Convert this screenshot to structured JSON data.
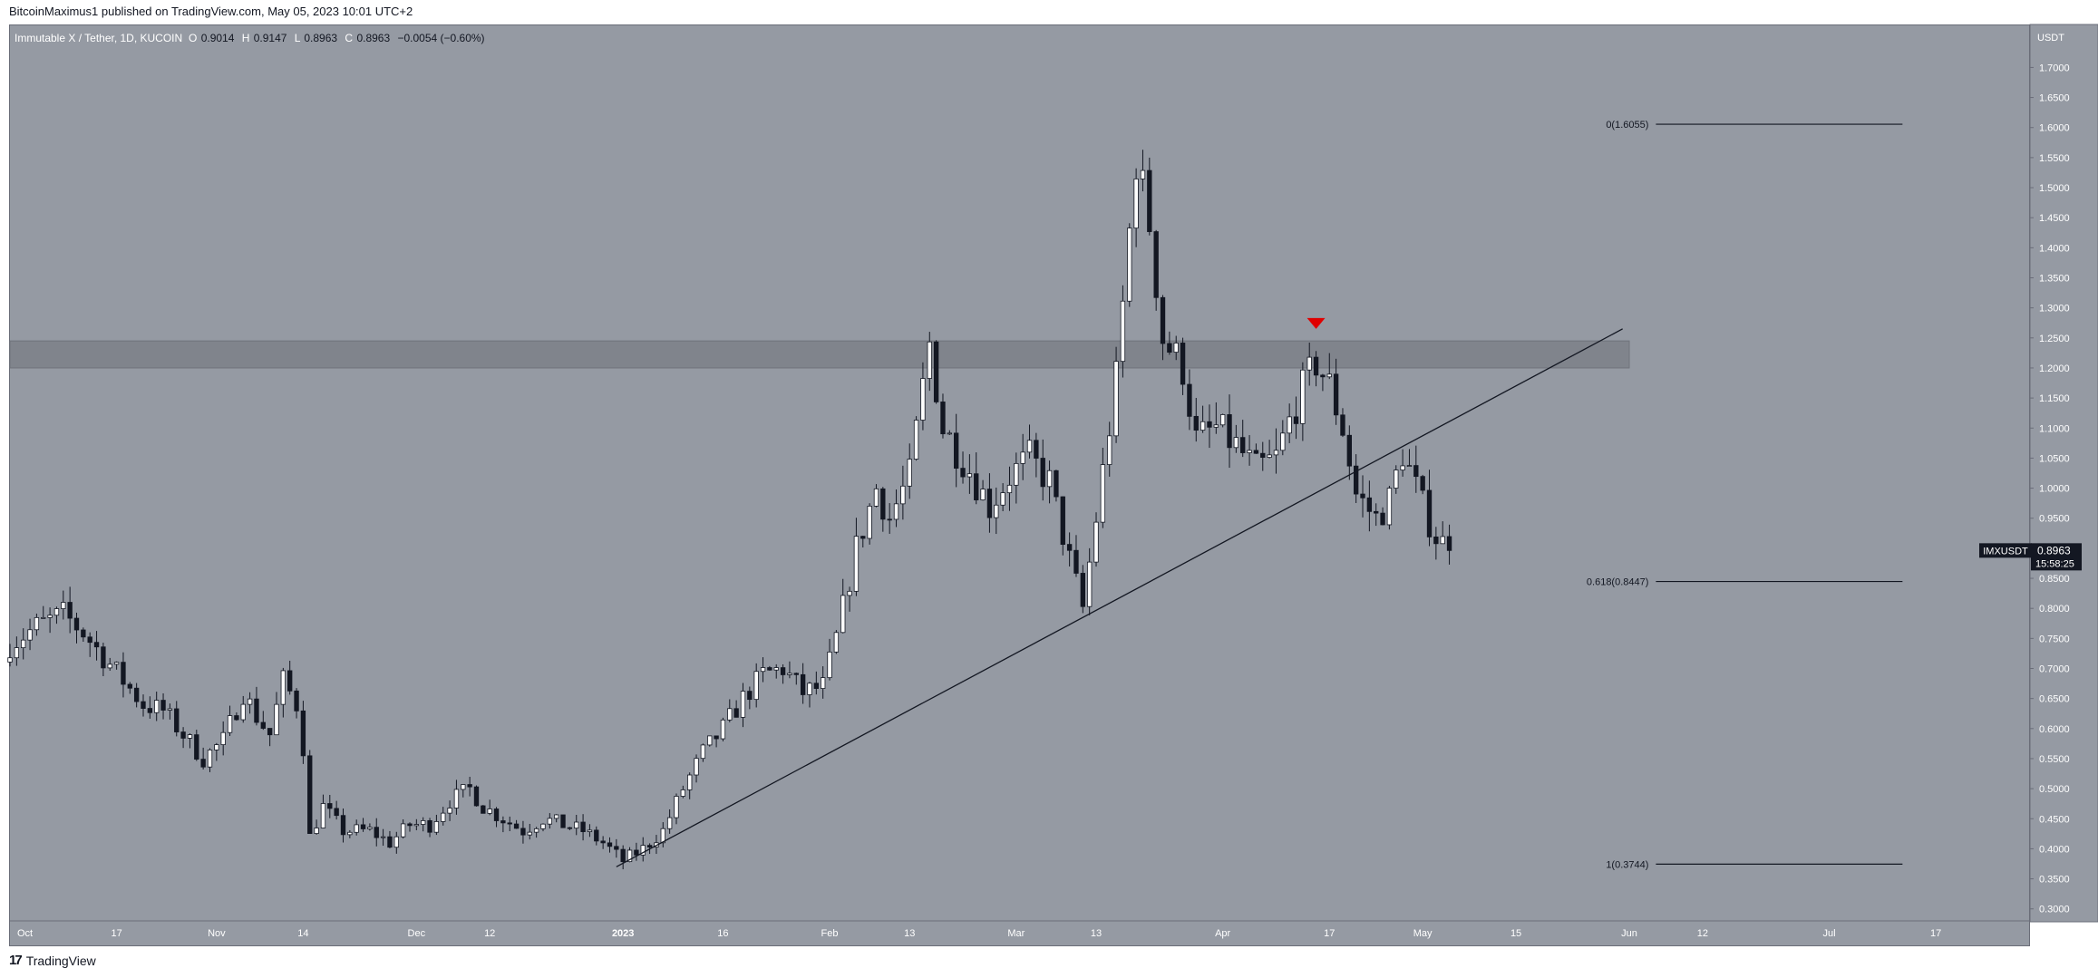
{
  "header": {
    "publisher_line": "BitcoinMaximus1 published on TradingView.com, May 05, 2023 10:01 UTC+2"
  },
  "legend": {
    "symbol": "Immutable X / Tether, 1D, KUCOIN",
    "open_label": "O",
    "open": "0.9014",
    "high_label": "H",
    "high": "0.9147",
    "low_label": "L",
    "low": "0.8963",
    "close_label": "C",
    "close": "0.8963",
    "change": "−0.0054 (−0.60%)"
  },
  "footer": {
    "logo": "17",
    "brand": "TradingView"
  },
  "colors": {
    "plot_bg": "#959aa3",
    "axis_bg": "#959aa3",
    "up_body": "#ffffff",
    "down_body": "#131722",
    "wick": "#131722",
    "resistance_zone": "#80848c",
    "marker": "#e00000",
    "price_tag": "#131722"
  },
  "chart_data": {
    "type": "candlestick",
    "symbol": "IMXUSDT",
    "unit": "USDT",
    "timeframe": "1D",
    "exchange": "KUCOIN",
    "ylim": [
      0.28,
      1.77
    ],
    "y_ticks": [
      "0.3000",
      "0.3500",
      "0.4000",
      "0.4500",
      "0.5000",
      "0.5500",
      "0.6000",
      "0.6500",
      "0.7000",
      "0.7500",
      "0.8000",
      "0.8500",
      "0.9000",
      "0.9500",
      "1.0000",
      "1.0500",
      "1.1000",
      "1.1500",
      "1.2000",
      "1.2500",
      "1.3000",
      "1.3500",
      "1.4000",
      "1.4500",
      "1.5000",
      "1.5500",
      "1.6000",
      "1.6500",
      "1.7000"
    ],
    "x_range": [
      "2022-10-01",
      "2023-07-31"
    ],
    "x_ticks": [
      {
        "label": "Oct",
        "date": "2022-10-01",
        "bold": false
      },
      {
        "label": "17",
        "date": "2022-10-17",
        "bold": false
      },
      {
        "label": "Nov",
        "date": "2022-11-01",
        "bold": false
      },
      {
        "label": "14",
        "date": "2022-11-14",
        "bold": false
      },
      {
        "label": "Dec",
        "date": "2022-12-01",
        "bold": false
      },
      {
        "label": "12",
        "date": "2022-12-12",
        "bold": false
      },
      {
        "label": "2023",
        "date": "2023-01-01",
        "bold": true
      },
      {
        "label": "16",
        "date": "2023-01-16",
        "bold": false
      },
      {
        "label": "Feb",
        "date": "2023-02-01",
        "bold": false
      },
      {
        "label": "13",
        "date": "2023-02-13",
        "bold": false
      },
      {
        "label": "Mar",
        "date": "2023-03-01",
        "bold": false
      },
      {
        "label": "13",
        "date": "2023-03-13",
        "bold": false
      },
      {
        "label": "Apr",
        "date": "2023-04-01",
        "bold": false
      },
      {
        "label": "17",
        "date": "2023-04-17",
        "bold": false
      },
      {
        "label": "May",
        "date": "2023-05-01",
        "bold": false
      },
      {
        "label": "15",
        "date": "2023-05-15",
        "bold": false
      },
      {
        "label": "Jun",
        "date": "2023-06-01",
        "bold": false
      },
      {
        "label": "12",
        "date": "2023-06-12",
        "bold": false
      },
      {
        "label": "Jul",
        "date": "2023-07-01",
        "bold": false
      },
      {
        "label": "17",
        "date": "2023-07-17",
        "bold": false
      }
    ],
    "close_path": [
      [
        "2022-10-01",
        0.74
      ],
      [
        "2022-10-05",
        0.77
      ],
      [
        "2022-10-09",
        0.79
      ],
      [
        "2022-10-12",
        0.76
      ],
      [
        "2022-10-15",
        0.72
      ],
      [
        "2022-10-18",
        0.68
      ],
      [
        "2022-10-21",
        0.64
      ],
      [
        "2022-10-24",
        0.63
      ],
      [
        "2022-10-27",
        0.59
      ],
      [
        "2022-10-30",
        0.55
      ],
      [
        "2022-11-02",
        0.58
      ],
      [
        "2022-11-05",
        0.66
      ],
      [
        "2022-11-07",
        0.62
      ],
      [
        "2022-11-09",
        0.59
      ],
      [
        "2022-11-11",
        0.68
      ],
      [
        "2022-11-13",
        0.64
      ],
      [
        "2022-11-14",
        0.57
      ],
      [
        "2022-11-15",
        0.42
      ],
      [
        "2022-11-17",
        0.47
      ],
      [
        "2022-11-20",
        0.43
      ],
      [
        "2022-11-24",
        0.43
      ],
      [
        "2022-11-27",
        0.41
      ],
      [
        "2022-11-30",
        0.44
      ],
      [
        "2022-12-03",
        0.44
      ],
      [
        "2022-12-06",
        0.48
      ],
      [
        "2022-12-09",
        0.5
      ],
      [
        "2022-12-11",
        0.47
      ],
      [
        "2022-12-14",
        0.45
      ],
      [
        "2022-12-17",
        0.43
      ],
      [
        "2022-12-20",
        0.45
      ],
      [
        "2022-12-23",
        0.44
      ],
      [
        "2022-12-26",
        0.43
      ],
      [
        "2022-12-29",
        0.41
      ],
      [
        "2023-01-01",
        0.38
      ],
      [
        "2023-01-04",
        0.4
      ],
      [
        "2023-01-07",
        0.43
      ],
      [
        "2023-01-10",
        0.5
      ],
      [
        "2023-01-13",
        0.56
      ],
      [
        "2023-01-16",
        0.6
      ],
      [
        "2023-01-19",
        0.65
      ],
      [
        "2023-01-22",
        0.69
      ],
      [
        "2023-01-25",
        0.7
      ],
      [
        "2023-01-28",
        0.66
      ],
      [
        "2023-01-31",
        0.67
      ],
      [
        "2023-02-02",
        0.75
      ],
      [
        "2023-02-05",
        0.9
      ],
      [
        "2023-02-08",
        1.0
      ],
      [
        "2023-02-10",
        0.95
      ],
      [
        "2023-02-13",
        1.02
      ],
      [
        "2023-02-16",
        1.24
      ],
      [
        "2023-02-18",
        1.1
      ],
      [
        "2023-02-22",
        1.03
      ],
      [
        "2023-02-25",
        0.97
      ],
      [
        "2023-02-28",
        1.02
      ],
      [
        "2023-03-03",
        1.05
      ],
      [
        "2023-03-06",
        1.01
      ],
      [
        "2023-03-09",
        0.88
      ],
      [
        "2023-03-11",
        0.8
      ],
      [
        "2023-03-13",
        0.95
      ],
      [
        "2023-03-16",
        1.18
      ],
      [
        "2023-03-19",
        1.55
      ],
      [
        "2023-03-21",
        1.44
      ],
      [
        "2023-03-23",
        1.25
      ],
      [
        "2023-03-26",
        1.2
      ],
      [
        "2023-03-28",
        1.08
      ],
      [
        "2023-03-31",
        1.1
      ],
      [
        "2023-04-03",
        1.07
      ],
      [
        "2023-04-06",
        1.03
      ],
      [
        "2023-04-09",
        1.05
      ],
      [
        "2023-04-12",
        1.14
      ],
      [
        "2023-04-15",
        1.21
      ],
      [
        "2023-04-17",
        1.17
      ],
      [
        "2023-04-19",
        1.1
      ],
      [
        "2023-04-21",
        0.99
      ],
      [
        "2023-04-24",
        0.95
      ],
      [
        "2023-04-26",
        0.98
      ],
      [
        "2023-04-28",
        1.06
      ],
      [
        "2023-05-01",
        0.97
      ],
      [
        "2023-05-03",
        0.92
      ],
      [
        "2023-05-05",
        0.8963
      ]
    ],
    "last_price": {
      "label": "IMXUSDT",
      "value": "0.8963",
      "countdown": "15:58:25"
    },
    "annotations": {
      "resistance_zone": {
        "low": 1.2,
        "high": 1.245,
        "from": "2022-10-01",
        "to": "2023-06-01"
      },
      "ascending_support_line": {
        "from": [
          "2022-12-31",
          0.37
        ],
        "to": [
          "2023-05-31",
          1.265
        ]
      },
      "bearish_marker": {
        "date": "2023-04-15",
        "price": 1.268
      },
      "fib_levels": [
        {
          "label": "0(1.6055)",
          "value": 1.6055
        },
        {
          "label": "0.618(0.8447)",
          "value": 0.8447
        },
        {
          "label": "1(0.3744)",
          "value": 0.3744
        }
      ],
      "fib_line_span": {
        "from": "2023-06-05",
        "to": "2023-07-12"
      }
    }
  }
}
